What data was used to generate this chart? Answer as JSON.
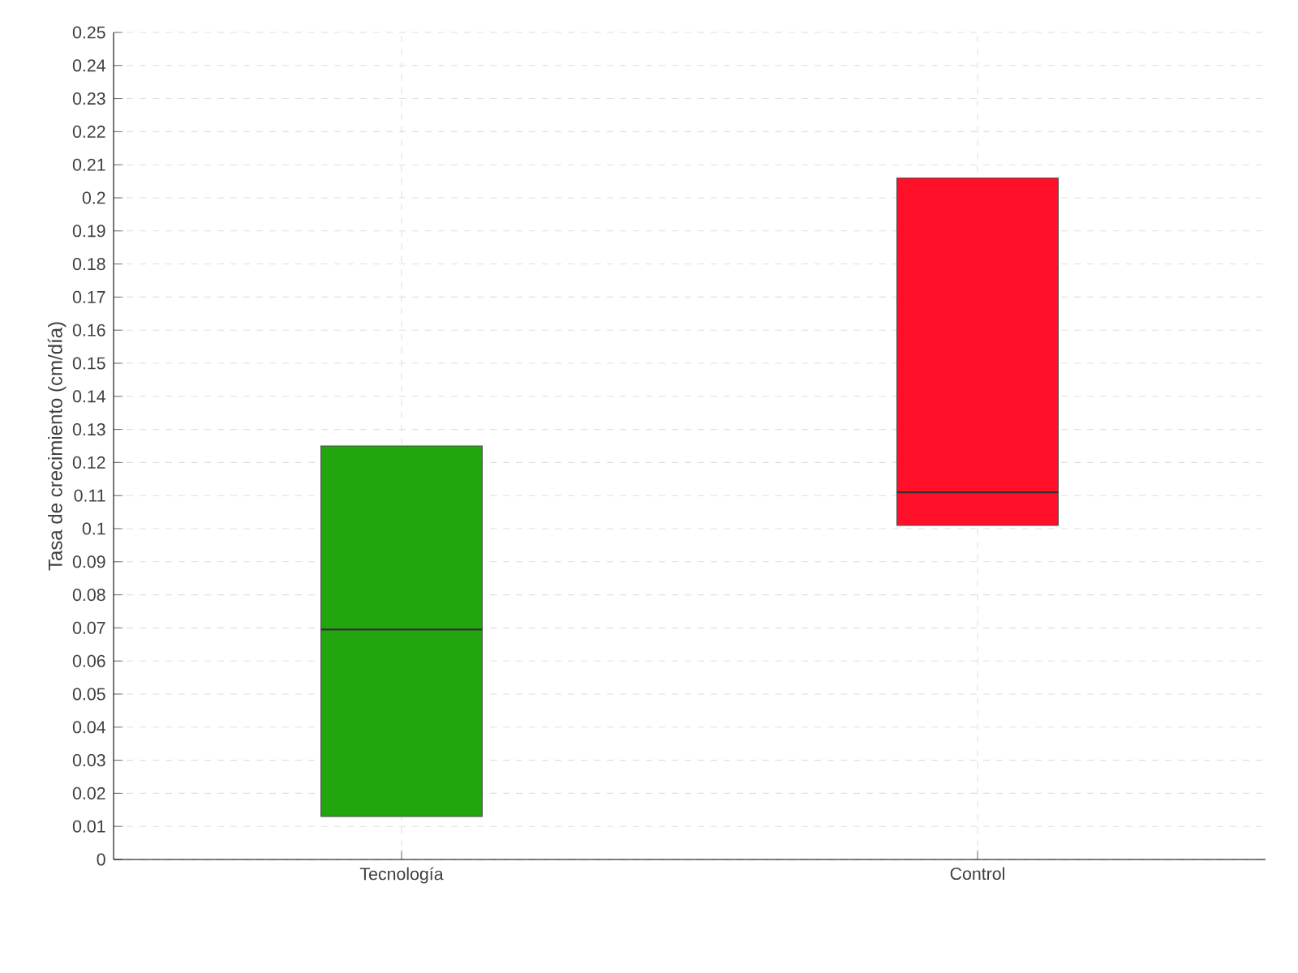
{
  "chart_data": {
    "type": "box",
    "ylabel": "Tasa de crecimiento (cm/día)",
    "categories": [
      "Tecnología",
      "Control"
    ],
    "series": [
      {
        "color": "#22a50f",
        "boxes": [
          {
            "low": 0.013,
            "q1": 0.013,
            "median": 0.0695,
            "q3": 0.125,
            "high": 0.125
          },
          null
        ]
      },
      {
        "color": "#ff0f28",
        "boxes": [
          null,
          {
            "low": 0.101,
            "q1": 0.101,
            "median": 0.111,
            "q3": 0.206,
            "high": 0.206
          }
        ]
      }
    ],
    "ylim": [
      0,
      0.25
    ],
    "yticks": [
      0,
      0.01,
      0.02,
      0.03,
      0.04,
      0.05,
      0.06,
      0.07,
      0.08,
      0.09,
      0.1,
      0.11,
      0.12,
      0.13,
      0.14,
      0.15,
      0.16,
      0.17,
      0.18,
      0.19,
      0.2,
      0.21,
      0.22,
      0.23,
      0.24,
      0.25
    ],
    "grid": true
  }
}
